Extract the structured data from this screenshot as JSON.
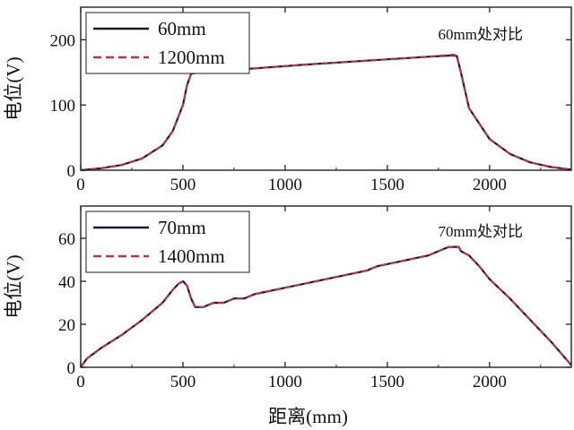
{
  "chart_data": [
    {
      "type": "line",
      "annotation": "60mm处对比",
      "xlabel": "",
      "ylabel": "电位(V)",
      "xlim": [
        0,
        2400
      ],
      "ylim": [
        0,
        250
      ],
      "xticks": [
        0,
        500,
        1000,
        1500,
        2000
      ],
      "yticks": [
        0,
        100,
        200
      ],
      "legend_position": "top-left",
      "grid": false,
      "series": [
        {
          "name": "60mm",
          "color": "#1a1a2e",
          "dash": "solid",
          "x": [
            0,
            100,
            200,
            300,
            400,
            450,
            500,
            520,
            540,
            560,
            800,
            1100,
            1400,
            1700,
            1820,
            1840,
            1860,
            1900,
            2000,
            2100,
            2200,
            2300,
            2400
          ],
          "y": [
            0,
            3,
            8,
            18,
            38,
            60,
            100,
            130,
            148,
            149,
            155,
            162,
            168,
            174,
            176,
            175,
            150,
            95,
            48,
            25,
            12,
            5,
            1
          ]
        },
        {
          "name": "1200mm",
          "color": "#b0384a",
          "dash": "dashed",
          "x": [
            0,
            100,
            200,
            300,
            400,
            450,
            500,
            520,
            540,
            560,
            800,
            1100,
            1400,
            1700,
            1820,
            1840,
            1860,
            1900,
            2000,
            2100,
            2200,
            2300,
            2400
          ],
          "y": [
            0,
            3,
            8,
            18,
            38,
            60,
            100,
            130,
            148,
            149,
            155,
            162,
            168,
            174,
            177,
            176,
            150,
            95,
            48,
            25,
            12,
            5,
            1
          ]
        }
      ]
    },
    {
      "type": "line",
      "annotation": "70mm处对比",
      "xlabel": "距离(mm)",
      "ylabel": "电位(V)",
      "xlim": [
        0,
        2400
      ],
      "ylim": [
        0,
        75
      ],
      "xticks": [
        0,
        500,
        1000,
        1500,
        2000
      ],
      "yticks": [
        0,
        20,
        40,
        60
      ],
      "legend_position": "top-left",
      "grid": false,
      "series": [
        {
          "name": "70mm",
          "color": "#1a1a2e",
          "dash": "solid",
          "x": [
            0,
            30,
            100,
            200,
            300,
            400,
            450,
            480,
            500,
            520,
            540,
            560,
            600,
            650,
            700,
            750,
            800,
            850,
            900,
            950,
            1000,
            1050,
            1100,
            1150,
            1200,
            1250,
            1300,
            1350,
            1400,
            1450,
            1500,
            1550,
            1600,
            1650,
            1700,
            1750,
            1800,
            1850,
            1860,
            1900,
            1950,
            2000,
            2100,
            2200,
            2300,
            2400
          ],
          "y": [
            0,
            4,
            9,
            15,
            22,
            30,
            36,
            39,
            40,
            38,
            32,
            28,
            28,
            30,
            30,
            32,
            32,
            34,
            35,
            36,
            37,
            38,
            39,
            40,
            41,
            42,
            43,
            44,
            45,
            47,
            48,
            49,
            50,
            51,
            52,
            54,
            56,
            56,
            54,
            52,
            47,
            41,
            32,
            22,
            12,
            1
          ]
        },
        {
          "name": "1400mm",
          "color": "#b0384a",
          "dash": "dashed",
          "x": [
            0,
            30,
            100,
            200,
            300,
            400,
            450,
            480,
            500,
            520,
            540,
            560,
            600,
            650,
            700,
            750,
            800,
            850,
            900,
            950,
            1000,
            1050,
            1100,
            1150,
            1200,
            1250,
            1300,
            1350,
            1400,
            1450,
            1500,
            1550,
            1600,
            1650,
            1700,
            1750,
            1800,
            1850,
            1860,
            1900,
            1950,
            2000,
            2100,
            2200,
            2300,
            2400
          ],
          "y": [
            0,
            4,
            9,
            15,
            22,
            30,
            36,
            39,
            40,
            38,
            32,
            28,
            28,
            30,
            30,
            32,
            32,
            34,
            35,
            36,
            37,
            38,
            39,
            40,
            41,
            42,
            43,
            44,
            45,
            47,
            48,
            49,
            50,
            51,
            52,
            54,
            56,
            56,
            54,
            52,
            47,
            41,
            32,
            22,
            12,
            1
          ]
        }
      ]
    }
  ]
}
